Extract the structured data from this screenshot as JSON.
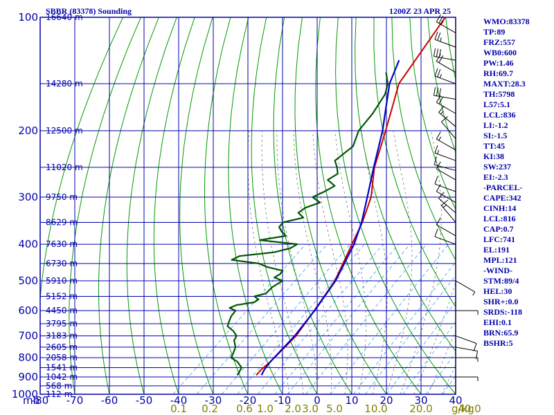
{
  "title_left": "SBBR (83378) Sounding",
  "title_right": "1200Z 23 APR 25",
  "stats": [
    "WMO:83378",
    "TP:89",
    "FRZ:557",
    "WB0:600",
    "PW:1.46",
    "RH:69.7",
    "MAXT:28.3",
    "TH:5798",
    "L57:5.1",
    "LCL:836",
    "LI:-1.2",
    "SI:-1.5",
    "TT:45",
    "KI:38",
    "SW:237",
    "EI:-2.3",
    "-PARCEL-",
    "CAPE:342",
    "CINH:14",
    "LCL:816",
    "CAP:0.7",
    "LFC:741",
    "EL:191",
    "MPL:121",
    "-WIND-",
    "STM:89/4",
    "HEL:30",
    "SHR+:0.0",
    "SRDS:-118",
    "EHI:0.1",
    "BRN:65.9",
    "BSHR:5"
  ],
  "colors": {
    "frame": "#0000aa",
    "dry_adiabat": "#009900",
    "moist_adiabat": "#777777",
    "mixing_ratio": "#3399ff",
    "temperature": "#cc0000",
    "parcel": "#0000cc",
    "dewpoint": "#005500",
    "wind": "#000000"
  },
  "chart_data": {
    "type": "line",
    "subtype": "skew-T log-P sounding",
    "x_unit_label": "",
    "y_unit_label": "mb",
    "pressure_ticks": [
      100,
      200,
      300,
      400,
      500,
      600,
      700,
      800,
      900,
      1000
    ],
    "pressure_ticks_text": [
      "100",
      "200",
      "300",
      "400",
      "500",
      "600",
      "700",
      "800",
      "900",
      "1000"
    ],
    "temperature_ticks": [
      -80,
      -70,
      -60,
      -50,
      -40,
      -30,
      -20,
      -10,
      0,
      10,
      20,
      30,
      40
    ],
    "temperature_ticks_text": [
      "-80",
      "-70",
      "-60",
      "-50",
      "-40",
      "-30",
      "-20",
      "-10",
      "0",
      "10",
      "20",
      "30",
      "40"
    ],
    "mixing_ratio_ticks": [
      {
        "label": "0.1",
        "x": -40
      },
      {
        "label": "0.2",
        "x": -31
      },
      {
        "label": "0.6",
        "x": -21
      },
      {
        "label": "1.0",
        "x": -15
      },
      {
        "label": "2.0",
        "x": -7
      },
      {
        "label": "3.0",
        "x": -2
      },
      {
        "label": "5.0",
        "x": 5
      },
      {
        "label": "10.0",
        "x": 17
      },
      {
        "label": "20.0",
        "x": 30
      },
      {
        "label": "40.0",
        "x": 44
      }
    ],
    "mixing_ratio_unit": "g/kg",
    "height_labels": [
      {
        "p": 100,
        "label": "16640 m"
      },
      {
        "p": 150,
        "label": "14280 m"
      },
      {
        "p": 200,
        "label": "12500 m"
      },
      {
        "p": 250,
        "label": "11020 m"
      },
      {
        "p": 300,
        "label": "9750 m"
      },
      {
        "p": 350,
        "label": "8629 m"
      },
      {
        "p": 400,
        "label": "7630 m"
      },
      {
        "p": 450,
        "label": "6730 m"
      },
      {
        "p": 500,
        "label": "5910 m"
      },
      {
        "p": 550,
        "label": "5152 m"
      },
      {
        "p": 600,
        "label": "4450 m"
      },
      {
        "p": 650,
        "label": "3795 m"
      },
      {
        "p": 700,
        "label": "3183 m"
      },
      {
        "p": 750,
        "label": "2605 m"
      },
      {
        "p": 800,
        "label": "2058 m"
      },
      {
        "p": 850,
        "label": "1541 m"
      },
      {
        "p": 900,
        "label": "1042 m"
      },
      {
        "p": 950,
        "label": "568 m"
      },
      {
        "p": 1000,
        "label": "112 m"
      }
    ],
    "xlim": [
      -80,
      40
    ],
    "ylim": [
      1000,
      100
    ],
    "skew_deg_per_log10p": -117,
    "series": [
      {
        "key": "temperature",
        "points": [
          [
            890,
            -23.5
          ],
          [
            860,
            -23.8
          ],
          [
            820,
            -23.6
          ],
          [
            700,
            -24.2
          ],
          [
            600,
            -26.8
          ],
          [
            500,
            -30.1
          ],
          [
            400,
            -36.5
          ],
          [
            350,
            -40.3
          ],
          [
            300,
            -45.6
          ],
          [
            250,
            -53.9
          ],
          [
            200,
            -62.0
          ],
          [
            150,
            -72.8
          ],
          [
            100,
            -80.0
          ]
        ]
      },
      {
        "key": "parcel",
        "points": [
          [
            890,
            -22.0
          ],
          [
            860,
            -22.9
          ],
          [
            820,
            -23.6
          ],
          [
            700,
            -24.6
          ],
          [
            600,
            -26.7
          ],
          [
            500,
            -29.9
          ],
          [
            400,
            -35.9
          ],
          [
            350,
            -40.5
          ],
          [
            300,
            -46.7
          ],
          [
            250,
            -54.1
          ],
          [
            200,
            -62.9
          ],
          [
            150,
            -75.5
          ],
          [
            130,
            -80.0
          ]
        ]
      },
      {
        "key": "dewpoint",
        "points": [
          [
            890,
            -29.0
          ],
          [
            870,
            -29.5
          ],
          [
            850,
            -30.1
          ],
          [
            820,
            -33.1
          ],
          [
            800,
            -36.2
          ],
          [
            780,
            -36.9
          ],
          [
            750,
            -38.2
          ],
          [
            720,
            -40.7
          ],
          [
            700,
            -41.4
          ],
          [
            680,
            -43.8
          ],
          [
            660,
            -47.0
          ],
          [
            640,
            -48.1
          ],
          [
            620,
            -49.1
          ],
          [
            600,
            -49.5
          ],
          [
            590,
            -52.1
          ],
          [
            580,
            -51.0
          ],
          [
            570,
            -46.7
          ],
          [
            560,
            -46.4
          ],
          [
            550,
            -48.5
          ],
          [
            540,
            -46.1
          ],
          [
            520,
            -46.2
          ],
          [
            500,
            -45.2
          ],
          [
            490,
            -48.6
          ],
          [
            480,
            -48.0
          ],
          [
            470,
            -48.3
          ],
          [
            460,
            -53.8
          ],
          [
            450,
            -57.4
          ],
          [
            440,
            -66.4
          ],
          [
            430,
            -65.3
          ],
          [
            420,
            -56.5
          ],
          [
            410,
            -53.1
          ],
          [
            400,
            -52.3
          ],
          [
            390,
            -64.4
          ],
          [
            380,
            -58.2
          ],
          [
            370,
            -60.8
          ],
          [
            360,
            -62.9
          ],
          [
            350,
            -63.2
          ],
          [
            340,
            -58.8
          ],
          [
            330,
            -61.8
          ],
          [
            320,
            -61.3
          ],
          [
            310,
            -58.7
          ],
          [
            300,
            -62.5
          ],
          [
            290,
            -60.8
          ],
          [
            280,
            -59.6
          ],
          [
            270,
            -63.5
          ],
          [
            260,
            -62.5
          ],
          [
            250,
            -64.7
          ],
          [
            240,
            -67.4
          ],
          [
            220,
            -66.6
          ],
          [
            200,
            -69.8
          ],
          [
            180,
            -71.1
          ],
          [
            160,
            -73.5
          ],
          [
            150,
            -76.0
          ],
          [
            140,
            -80.0
          ]
        ]
      }
    ],
    "wind_barbs": [
      {
        "p": 110,
        "dir": 300,
        "spd": 25
      },
      {
        "p": 120,
        "dir": 290,
        "spd": 25
      },
      {
        "p": 130,
        "dir": 280,
        "spd": 30
      },
      {
        "p": 140,
        "dir": 300,
        "spd": 20
      },
      {
        "p": 150,
        "dir": 290,
        "spd": 25
      },
      {
        "p": 165,
        "dir": 280,
        "spd": 30
      },
      {
        "p": 180,
        "dir": 300,
        "spd": 20
      },
      {
        "p": 195,
        "dir": 310,
        "spd": 15
      },
      {
        "p": 210,
        "dir": 320,
        "spd": 10
      },
      {
        "p": 225,
        "dir": 300,
        "spd": 15
      },
      {
        "p": 240,
        "dir": 290,
        "spd": 15
      },
      {
        "p": 255,
        "dir": 285,
        "spd": 10
      },
      {
        "p": 270,
        "dir": 300,
        "spd": 10
      },
      {
        "p": 290,
        "dir": 290,
        "spd": 10
      },
      {
        "p": 310,
        "dir": 300,
        "spd": 10
      },
      {
        "p": 330,
        "dir": 310,
        "spd": 10
      },
      {
        "p": 350,
        "dir": 320,
        "spd": 15
      },
      {
        "p": 380,
        "dir": 300,
        "spd": 10
      },
      {
        "p": 400,
        "dir": 290,
        "spd": 10
      },
      {
        "p": 500,
        "dir": 120,
        "spd": 5
      },
      {
        "p": 600,
        "dir": 90,
        "spd": 5
      },
      {
        "p": 700,
        "dir": 110,
        "spd": 10
      },
      {
        "p": 750,
        "dir": 100,
        "spd": 10
      },
      {
        "p": 800,
        "dir": 90,
        "spd": 5
      },
      {
        "p": 900,
        "dir": 90,
        "spd": 5
      }
    ]
  }
}
